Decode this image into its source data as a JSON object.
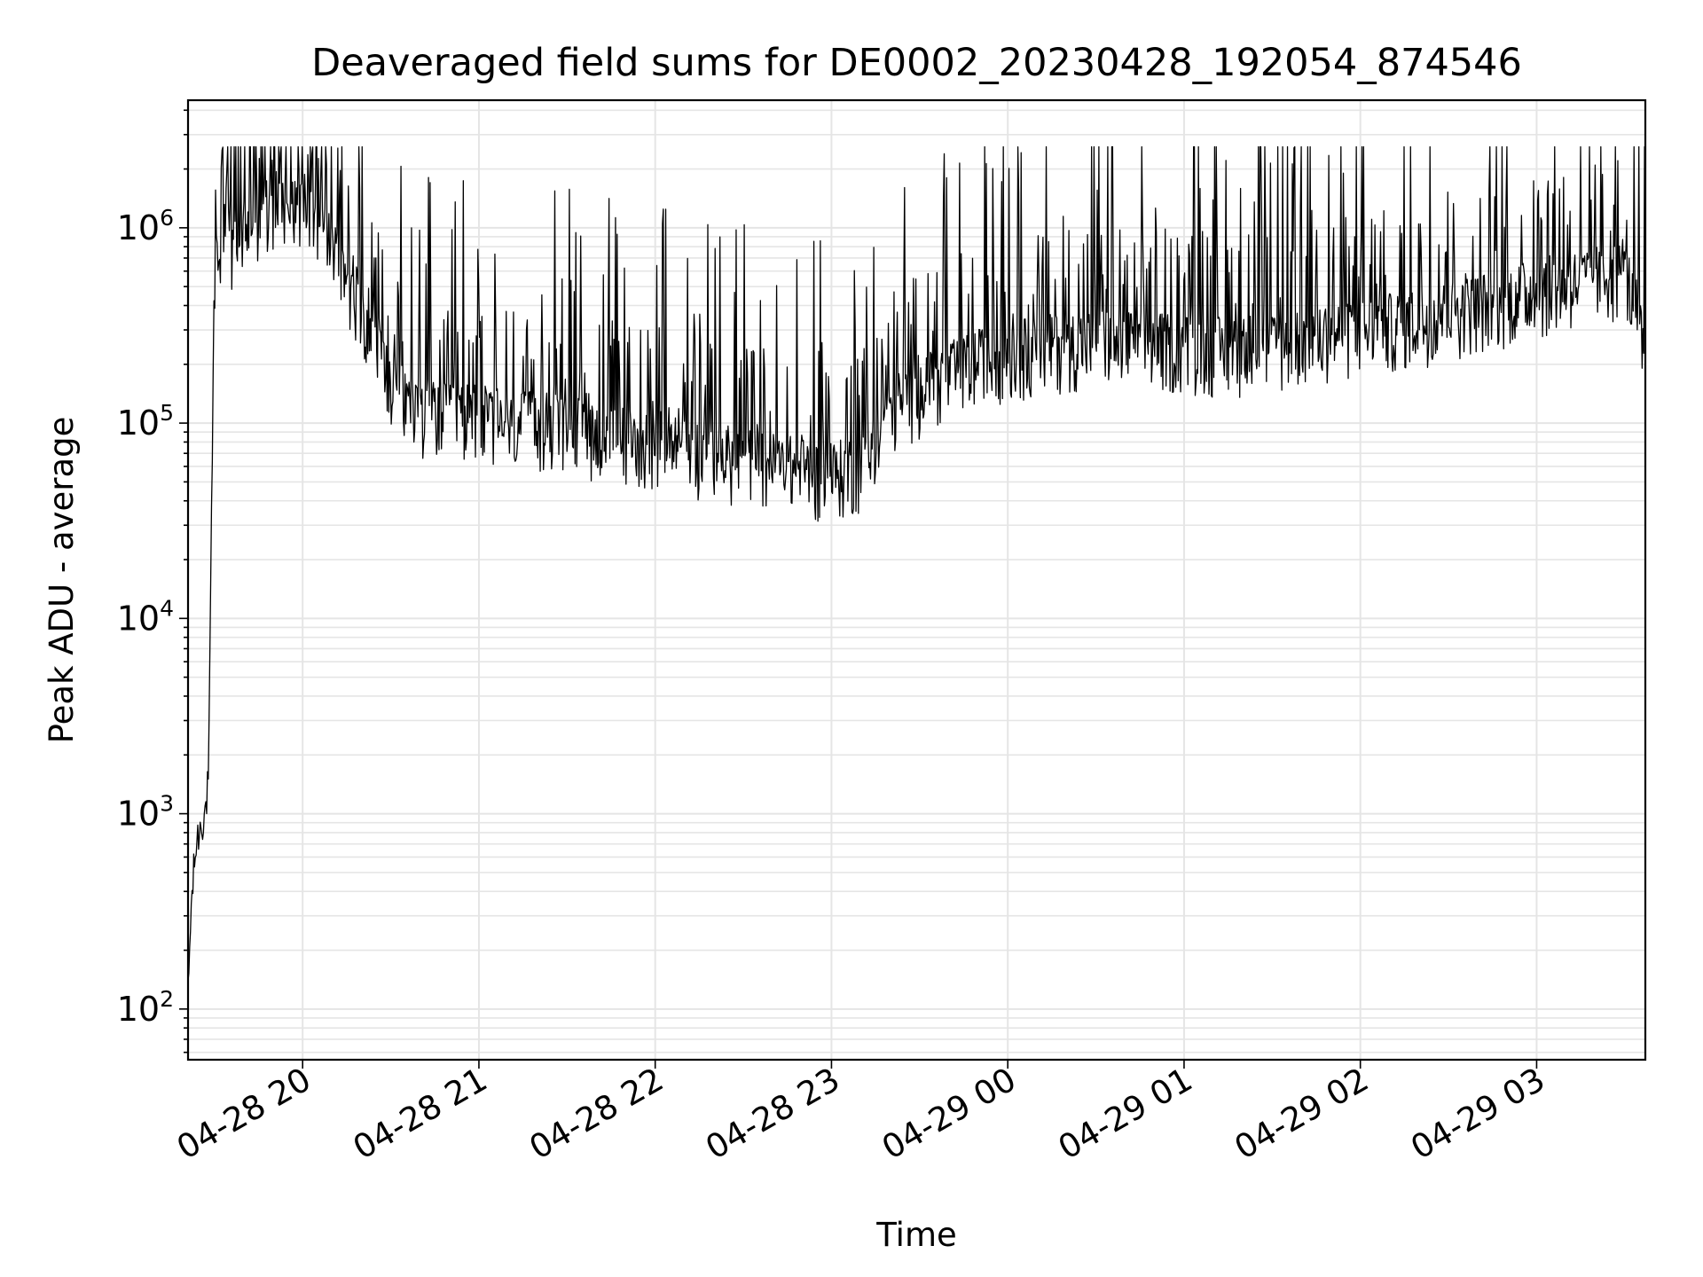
{
  "chart_data": {
    "type": "line",
    "title": "Deaveraged field sums for DE0002_20230428_192054_874546",
    "xlabel": "Time",
    "ylabel": "Peak ADU - average",
    "yscale": "log",
    "ylim": [
      55,
      4500000
    ],
    "xlim": [
      "2023-04-28 19:21",
      "2023-04-29 03:37"
    ],
    "grid": true,
    "line_color": "#000000",
    "grid_color": "#e5e5e5",
    "x_ticks": [
      {
        "value": "2023-04-28 20:00",
        "label": "04-28 20"
      },
      {
        "value": "2023-04-28 21:00",
        "label": "04-28 21"
      },
      {
        "value": "2023-04-28 22:00",
        "label": "04-28 22"
      },
      {
        "value": "2023-04-28 23:00",
        "label": "04-28 23"
      },
      {
        "value": "2023-04-29 00:00",
        "label": "04-29 00"
      },
      {
        "value": "2023-04-29 01:00",
        "label": "04-29 01"
      },
      {
        "value": "2023-04-29 02:00",
        "label": "04-29 02"
      },
      {
        "value": "2023-04-29 03:00",
        "label": "04-29 03"
      }
    ],
    "y_ticks": [
      {
        "value": 100,
        "base": "10",
        "exp": "2"
      },
      {
        "value": 1000,
        "base": "10",
        "exp": "3"
      },
      {
        "value": 10000,
        "base": "10",
        "exp": "4"
      },
      {
        "value": 100000,
        "base": "10",
        "exp": "5"
      },
      {
        "value": 1000000,
        "base": "10",
        "exp": "6"
      }
    ],
    "series": [
      {
        "x": [
          "2023-04-28 19:21",
          "2023-04-28 19:22",
          "2023-04-28 19:23",
          "2023-04-28 19:24",
          "2023-04-28 19:25",
          "2023-04-28 19:26",
          "2023-04-28 19:27",
          "2023-04-28 19:28",
          "2023-04-28 19:29",
          "2023-04-28 19:30",
          "2023-04-28 19:32",
          "2023-04-28 19:34",
          "2023-04-28 19:36",
          "2023-04-28 19:40",
          "2023-04-28 19:45",
          "2023-04-28 19:50",
          "2023-04-28 19:55",
          "2023-04-28 20:00",
          "2023-04-28 20:05",
          "2023-04-28 20:10",
          "2023-04-28 20:15",
          "2023-04-28 20:20",
          "2023-04-28 20:25",
          "2023-04-28 20:30",
          "2023-04-28 20:40",
          "2023-04-28 20:50",
          "2023-04-28 21:00",
          "2023-04-28 21:10",
          "2023-04-28 21:20",
          "2023-04-28 21:30",
          "2023-04-28 21:40",
          "2023-04-28 21:50",
          "2023-04-28 22:00",
          "2023-04-28 22:10",
          "2023-04-28 22:20",
          "2023-04-28 22:30",
          "2023-04-28 22:40",
          "2023-04-28 22:50",
          "2023-04-28 22:55",
          "2023-04-28 23:00",
          "2023-04-28 23:05",
          "2023-04-28 23:10",
          "2023-04-28 23:15",
          "2023-04-28 23:20",
          "2023-04-28 23:30",
          "2023-04-28 23:40",
          "2023-04-28 23:50",
          "2023-04-29 00:00",
          "2023-04-29 00:15",
          "2023-04-29 00:30",
          "2023-04-29 00:45",
          "2023-04-29 01:00",
          "2023-04-29 01:15",
          "2023-04-29 01:30",
          "2023-04-29 01:45",
          "2023-04-29 02:00",
          "2023-04-29 02:15",
          "2023-04-29 02:30",
          "2023-04-29 02:45",
          "2023-04-29 03:00",
          "2023-04-29 03:10",
          "2023-04-29 03:20",
          "2023-04-29 03:30",
          "2023-04-29 03:35",
          "2023-04-29 03:37"
        ],
        "y": [
          110,
          300,
          500,
          700,
          800,
          900,
          1000,
          1500,
          30000,
          600000,
          800000,
          1000000,
          800000,
          1000000,
          1200000,
          1300000,
          1500000,
          1400000,
          1200000,
          800000,
          600000,
          400000,
          300000,
          150000,
          120000,
          110000,
          110000,
          100000,
          100000,
          95000,
          90000,
          85000,
          80000,
          75000,
          70000,
          65000,
          62000,
          58000,
          55000,
          55000,
          58000,
          62000,
          75000,
          120000,
          150000,
          180000,
          210000,
          230000,
          250000,
          270000,
          260000,
          250000,
          240000,
          250000,
          280000,
          300000,
          330000,
          370000,
          420000,
          480000,
          520000,
          560000,
          600000,
          350000,
          150000
        ]
      }
    ]
  }
}
